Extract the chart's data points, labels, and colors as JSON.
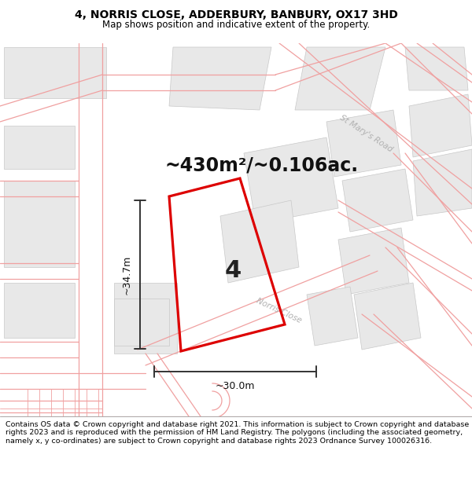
{
  "title_line1": "4, NORRIS CLOSE, ADDERBURY, BANBURY, OX17 3HD",
  "title_line2": "Map shows position and indicative extent of the property.",
  "area_label": "~430m²/~0.106ac.",
  "dim_height": "~34.7m",
  "dim_width": "~30.0m",
  "property_number": "4",
  "footer": "Contains OS data © Crown copyright and database right 2021. This information is subject to Crown copyright and database rights 2023 and is reproduced with the permission of HM Land Registry. The polygons (including the associated geometry, namely x, y co-ordinates) are subject to Crown copyright and database rights 2023 Ordnance Survey 100026316.",
  "bg_color": "#ffffff",
  "map_bg": "#ffffff",
  "road_color": "#f0a0a0",
  "building_color": "#e8e8e8",
  "building_edge": "#c8c8c8",
  "red_polygon_color": "#dd0000",
  "title_fontsize": 10,
  "subtitle_fontsize": 8.5,
  "footer_fontsize": 6.8,
  "area_fontsize": 17,
  "dim_fontsize": 9,
  "num_fontsize": 22
}
